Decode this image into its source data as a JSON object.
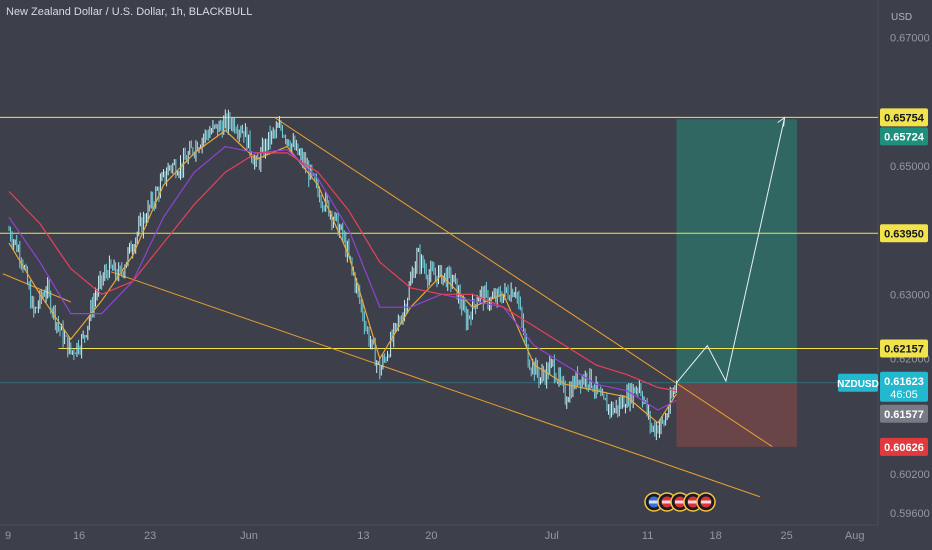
{
  "chart_data": {
    "type": "line",
    "title": "New Zealand Dollar / U.S. Dollar, 1h, BLACKBULL",
    "currency_label": "USD",
    "symbol": "NZDUSD",
    "countdown": "46:05",
    "y_ticks": [
      "0.67000",
      "0.65000",
      "0.63000",
      "0.62000",
      "0.60200",
      "0.59600"
    ],
    "x_ticks": [
      "9",
      "16",
      "23",
      "Jun",
      "13",
      "20",
      "Jul",
      "11",
      "18",
      "25",
      "Aug"
    ],
    "x_tick_index": [
      0,
      23,
      46,
      78,
      115,
      137,
      176,
      207,
      229,
      252,
      274
    ],
    "ylim": [
      0.5941,
      0.6758
    ],
    "horizontal_levels": [
      {
        "label": "0.65754",
        "value": 0.65754,
        "color": "#f2e34c"
      },
      {
        "label": "0.63950",
        "value": 0.6395,
        "color": "#f2e34c"
      },
      {
        "label": "0.62157",
        "value": 0.62157,
        "color": "#f2e34c"
      }
    ],
    "price_tags": [
      {
        "label": "0.65724",
        "value": 0.65724,
        "color": "#1e8f7c"
      },
      {
        "label": "0.61623",
        "value": 0.61623,
        "color": "#22b8cf"
      },
      {
        "label": "0.61577",
        "value": 0.61577,
        "color": "#787b86"
      },
      {
        "label": "0.60626",
        "value": 0.60626,
        "color": "#e0393e"
      }
    ],
    "position": {
      "entry": 0.6162,
      "target": 0.65724,
      "stop": 0.60626,
      "start_index": 216,
      "end_index": 255
    },
    "trendlines": [
      {
        "from": [
          86,
          0.6575
        ],
        "to": [
          247,
          0.6063
        ]
      },
      {
        "from": [
          33,
          0.6335
        ],
        "to": [
          243,
          0.5985
        ]
      },
      {
        "from": [
          -2,
          0.6332
        ],
        "to": [
          20,
          0.6288
        ]
      }
    ],
    "projection": [
      [
        216,
        0.6162
      ],
      [
        226,
        0.622
      ],
      [
        232,
        0.6165
      ],
      [
        251,
        0.6575
      ]
    ],
    "price": [
      [
        0,
        0.64
      ],
      [
        4,
        0.636
      ],
      [
        8,
        0.627
      ],
      [
        12,
        0.631
      ],
      [
        16,
        0.625
      ],
      [
        20,
        0.621
      ],
      [
        24,
        0.623
      ],
      [
        28,
        0.63
      ],
      [
        32,
        0.634
      ],
      [
        36,
        0.633
      ],
      [
        40,
        0.638
      ],
      [
        44,
        0.642
      ],
      [
        48,
        0.646
      ],
      [
        52,
        0.65
      ],
      [
        56,
        0.65
      ],
      [
        60,
        0.653
      ],
      [
        64,
        0.655
      ],
      [
        68,
        0.656
      ],
      [
        72,
        0.657
      ],
      [
        76,
        0.6555
      ],
      [
        80,
        0.65
      ],
      [
        84,
        0.654
      ],
      [
        88,
        0.656
      ],
      [
        92,
        0.653
      ],
      [
        96,
        0.65
      ],
      [
        100,
        0.646
      ],
      [
        104,
        0.643
      ],
      [
        108,
        0.639
      ],
      [
        112,
        0.632
      ],
      [
        116,
        0.624
      ],
      [
        120,
        0.618
      ],
      [
        124,
        0.623
      ],
      [
        128,
        0.628
      ],
      [
        132,
        0.636
      ],
      [
        136,
        0.633
      ],
      [
        140,
        0.633
      ],
      [
        144,
        0.632
      ],
      [
        148,
        0.626
      ],
      [
        152,
        0.63
      ],
      [
        156,
        0.629
      ],
      [
        160,
        0.63
      ],
      [
        164,
        0.631
      ],
      [
        168,
        0.62
      ],
      [
        172,
        0.617
      ],
      [
        176,
        0.619
      ],
      [
        180,
        0.614
      ],
      [
        184,
        0.617
      ],
      [
        188,
        0.617
      ],
      [
        192,
        0.613
      ],
      [
        196,
        0.612
      ],
      [
        200,
        0.614
      ],
      [
        204,
        0.616
      ],
      [
        208,
        0.609
      ],
      [
        212,
        0.61
      ],
      [
        216,
        0.6162
      ]
    ],
    "series": [
      {
        "name": "",
        "color": "#e8a93a",
        "values": [
          [
            0,
            0.638
          ],
          [
            10,
            0.63
          ],
          [
            20,
            0.623
          ],
          [
            30,
            0.629
          ],
          [
            40,
            0.636
          ],
          [
            50,
            0.647
          ],
          [
            60,
            0.652
          ],
          [
            70,
            0.6555
          ],
          [
            80,
            0.651
          ],
          [
            90,
            0.653
          ],
          [
            100,
            0.647
          ],
          [
            110,
            0.636
          ],
          [
            120,
            0.62
          ],
          [
            130,
            0.628
          ],
          [
            140,
            0.633
          ],
          [
            150,
            0.628
          ],
          [
            160,
            0.63
          ],
          [
            170,
            0.619
          ],
          [
            180,
            0.616
          ],
          [
            190,
            0.615
          ],
          [
            200,
            0.614
          ],
          [
            210,
            0.61
          ],
          [
            216,
            0.6145
          ]
        ]
      },
      {
        "name": "",
        "color": "#8e44d6",
        "values": [
          [
            0,
            0.642
          ],
          [
            10,
            0.635
          ],
          [
            20,
            0.627
          ],
          [
            30,
            0.627
          ],
          [
            40,
            0.632
          ],
          [
            50,
            0.642
          ],
          [
            60,
            0.649
          ],
          [
            70,
            0.653
          ],
          [
            80,
            0.652
          ],
          [
            90,
            0.6525
          ],
          [
            100,
            0.648
          ],
          [
            110,
            0.64
          ],
          [
            120,
            0.628
          ],
          [
            130,
            0.628
          ],
          [
            140,
            0.63
          ],
          [
            150,
            0.629
          ],
          [
            160,
            0.628
          ],
          [
            170,
            0.622
          ],
          [
            180,
            0.619
          ],
          [
            190,
            0.616
          ],
          [
            200,
            0.615
          ],
          [
            210,
            0.612
          ],
          [
            216,
            0.6135
          ]
        ]
      },
      {
        "name": "",
        "color": "#e8405a",
        "values": [
          [
            0,
            0.646
          ],
          [
            10,
            0.641
          ],
          [
            20,
            0.634
          ],
          [
            30,
            0.63
          ],
          [
            40,
            0.632
          ],
          [
            50,
            0.638
          ],
          [
            60,
            0.644
          ],
          [
            70,
            0.649
          ],
          [
            80,
            0.652
          ],
          [
            90,
            0.652
          ],
          [
            100,
            0.649
          ],
          [
            110,
            0.643
          ],
          [
            120,
            0.635
          ],
          [
            130,
            0.631
          ],
          [
            140,
            0.63
          ],
          [
            150,
            0.63
          ],
          [
            160,
            0.628
          ],
          [
            170,
            0.625
          ],
          [
            180,
            0.622
          ],
          [
            190,
            0.619
          ],
          [
            200,
            0.6175
          ],
          [
            210,
            0.6155
          ],
          [
            216,
            0.615
          ]
        ]
      }
    ],
    "grid": false
  }
}
